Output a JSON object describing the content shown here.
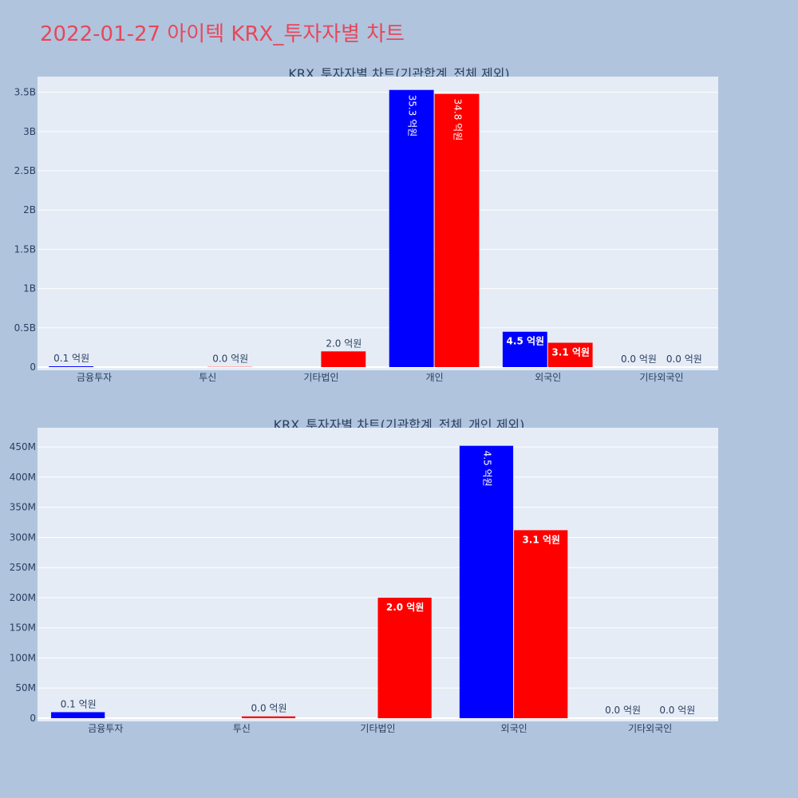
{
  "title": "2022-01-27 아이텍 KRX_투자자별 차트",
  "colors": {
    "title": "#e8475a",
    "buy": "#0000ff",
    "sell": "#ff0000",
    "plot_bg": "#e5ecf6",
    "page_bg": "#b0c4de"
  },
  "chart_data": [
    {
      "type": "bar",
      "title": "KRX_투자자별 차트(기관합계_전체 제외)",
      "categories": [
        "금융투자",
        "투신",
        "기타법인",
        "개인",
        "외국인",
        "기타외국인"
      ],
      "series": [
        {
          "values": [
            10000000,
            0,
            0,
            3530000000,
            450000000,
            0
          ],
          "labels": [
            "0.1 억원",
            "",
            "",
            "35.3 억원",
            "4.5 억원",
            "0.0 억원"
          ]
        },
        {
          "values": [
            0,
            3000000,
            200000000,
            3480000000,
            310000000,
            0
          ],
          "labels": [
            "",
            "0.0 억원",
            "2.0 억원",
            "34.8 억원",
            "3.1 억원",
            "0.0 억원"
          ]
        }
      ],
      "ylim": [
        0,
        3700000000
      ],
      "yticks": [
        0,
        500000000,
        1000000000,
        1500000000,
        2000000000,
        2500000000,
        3000000000,
        3500000000
      ],
      "ytick_labels": [
        "0",
        "0.5B",
        "1B",
        "1.5B",
        "2B",
        "2.5B",
        "3B",
        "3.5B"
      ],
      "grid": true
    },
    {
      "type": "bar",
      "title": "KRX_투자자별 차트(기관합계_전체_개인 제외)",
      "categories": [
        "금융투자",
        "투신",
        "기타법인",
        "외국인",
        "기타외국인"
      ],
      "series": [
        {
          "values": [
            10000000,
            0,
            0,
            452000000,
            0
          ],
          "labels": [
            "0.1 억원",
            "",
            "",
            "4.5 억원",
            "0.0 억원"
          ]
        },
        {
          "values": [
            0,
            3000000,
            200000000,
            312000000,
            0
          ],
          "labels": [
            "",
            "0.0 억원",
            "2.0 억원",
            "3.1 억원",
            "0.0 억원"
          ]
        }
      ],
      "ylim": [
        0,
        482000000
      ],
      "yticks": [
        0,
        50000000,
        100000000,
        150000000,
        200000000,
        250000000,
        300000000,
        350000000,
        400000000,
        450000000
      ],
      "ytick_labels": [
        "0",
        "50M",
        "100M",
        "150M",
        "200M",
        "250M",
        "300M",
        "350M",
        "400M",
        "450M"
      ],
      "grid": true
    }
  ]
}
